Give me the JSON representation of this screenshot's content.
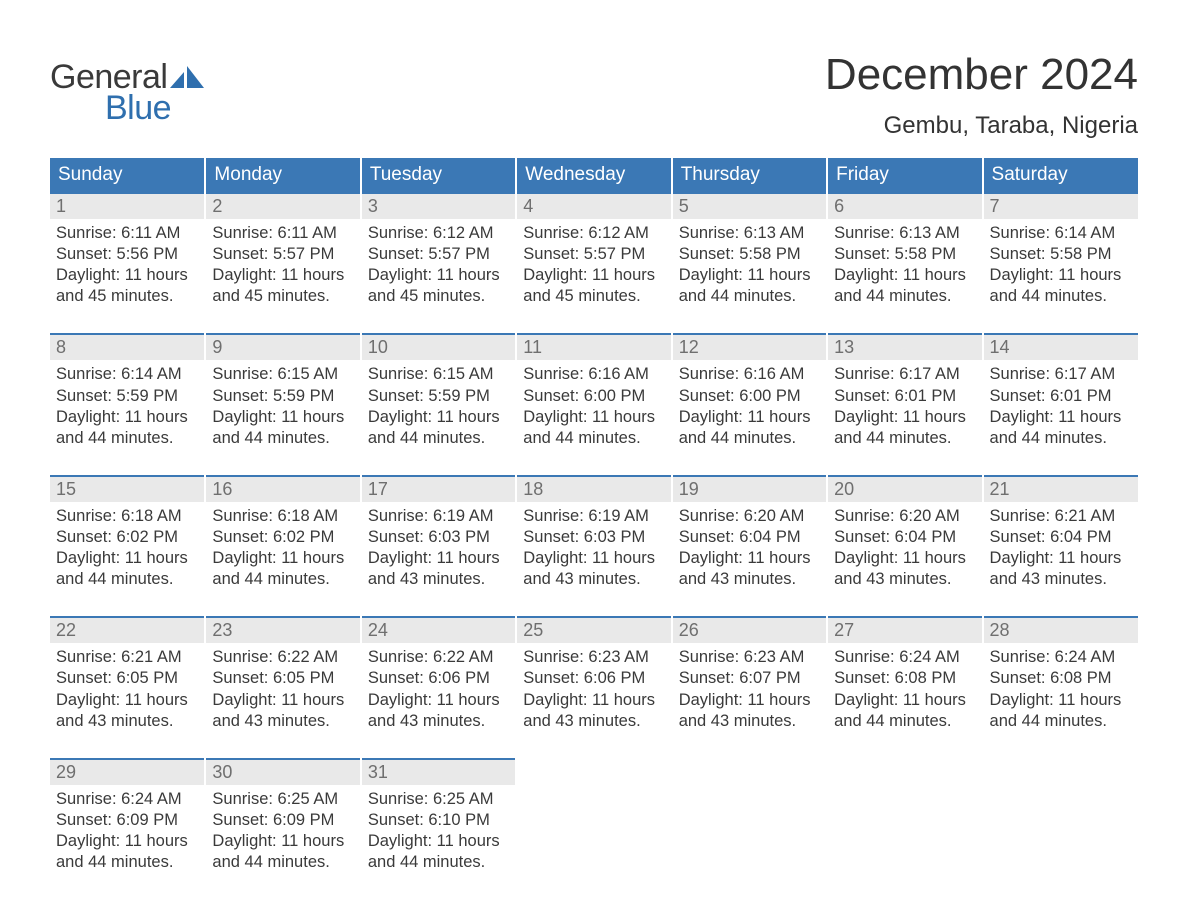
{
  "logo": {
    "text1": "General",
    "text2": "Blue",
    "accent_color": "#2f6fae"
  },
  "title": "December 2024",
  "location": "Gembu, Taraba, Nigeria",
  "header_bg": "#3b78b5",
  "daynum_bg": "#e9e9e9",
  "border_color": "#3b78b5",
  "day_headers": [
    "Sunday",
    "Monday",
    "Tuesday",
    "Wednesday",
    "Thursday",
    "Friday",
    "Saturday"
  ],
  "weeks": [
    [
      {
        "n": "1",
        "sr": "6:11 AM",
        "ss": "5:56 PM",
        "dl": "11 hours and 45 minutes."
      },
      {
        "n": "2",
        "sr": "6:11 AM",
        "ss": "5:57 PM",
        "dl": "11 hours and 45 minutes."
      },
      {
        "n": "3",
        "sr": "6:12 AM",
        "ss": "5:57 PM",
        "dl": "11 hours and 45 minutes."
      },
      {
        "n": "4",
        "sr": "6:12 AM",
        "ss": "5:57 PM",
        "dl": "11 hours and 45 minutes."
      },
      {
        "n": "5",
        "sr": "6:13 AM",
        "ss": "5:58 PM",
        "dl": "11 hours and 44 minutes."
      },
      {
        "n": "6",
        "sr": "6:13 AM",
        "ss": "5:58 PM",
        "dl": "11 hours and 44 minutes."
      },
      {
        "n": "7",
        "sr": "6:14 AM",
        "ss": "5:58 PM",
        "dl": "11 hours and 44 minutes."
      }
    ],
    [
      {
        "n": "8",
        "sr": "6:14 AM",
        "ss": "5:59 PM",
        "dl": "11 hours and 44 minutes."
      },
      {
        "n": "9",
        "sr": "6:15 AM",
        "ss": "5:59 PM",
        "dl": "11 hours and 44 minutes."
      },
      {
        "n": "10",
        "sr": "6:15 AM",
        "ss": "5:59 PM",
        "dl": "11 hours and 44 minutes."
      },
      {
        "n": "11",
        "sr": "6:16 AM",
        "ss": "6:00 PM",
        "dl": "11 hours and 44 minutes."
      },
      {
        "n": "12",
        "sr": "6:16 AM",
        "ss": "6:00 PM",
        "dl": "11 hours and 44 minutes."
      },
      {
        "n": "13",
        "sr": "6:17 AM",
        "ss": "6:01 PM",
        "dl": "11 hours and 44 minutes."
      },
      {
        "n": "14",
        "sr": "6:17 AM",
        "ss": "6:01 PM",
        "dl": "11 hours and 44 minutes."
      }
    ],
    [
      {
        "n": "15",
        "sr": "6:18 AM",
        "ss": "6:02 PM",
        "dl": "11 hours and 44 minutes."
      },
      {
        "n": "16",
        "sr": "6:18 AM",
        "ss": "6:02 PM",
        "dl": "11 hours and 44 minutes."
      },
      {
        "n": "17",
        "sr": "6:19 AM",
        "ss": "6:03 PM",
        "dl": "11 hours and 43 minutes."
      },
      {
        "n": "18",
        "sr": "6:19 AM",
        "ss": "6:03 PM",
        "dl": "11 hours and 43 minutes."
      },
      {
        "n": "19",
        "sr": "6:20 AM",
        "ss": "6:04 PM",
        "dl": "11 hours and 43 minutes."
      },
      {
        "n": "20",
        "sr": "6:20 AM",
        "ss": "6:04 PM",
        "dl": "11 hours and 43 minutes."
      },
      {
        "n": "21",
        "sr": "6:21 AM",
        "ss": "6:04 PM",
        "dl": "11 hours and 43 minutes."
      }
    ],
    [
      {
        "n": "22",
        "sr": "6:21 AM",
        "ss": "6:05 PM",
        "dl": "11 hours and 43 minutes."
      },
      {
        "n": "23",
        "sr": "6:22 AM",
        "ss": "6:05 PM",
        "dl": "11 hours and 43 minutes."
      },
      {
        "n": "24",
        "sr": "6:22 AM",
        "ss": "6:06 PM",
        "dl": "11 hours and 43 minutes."
      },
      {
        "n": "25",
        "sr": "6:23 AM",
        "ss": "6:06 PM",
        "dl": "11 hours and 43 minutes."
      },
      {
        "n": "26",
        "sr": "6:23 AM",
        "ss": "6:07 PM",
        "dl": "11 hours and 43 minutes."
      },
      {
        "n": "27",
        "sr": "6:24 AM",
        "ss": "6:08 PM",
        "dl": "11 hours and 44 minutes."
      },
      {
        "n": "28",
        "sr": "6:24 AM",
        "ss": "6:08 PM",
        "dl": "11 hours and 44 minutes."
      }
    ],
    [
      {
        "n": "29",
        "sr": "6:24 AM",
        "ss": "6:09 PM",
        "dl": "11 hours and 44 minutes."
      },
      {
        "n": "30",
        "sr": "6:25 AM",
        "ss": "6:09 PM",
        "dl": "11 hours and 44 minutes."
      },
      {
        "n": "31",
        "sr": "6:25 AM",
        "ss": "6:10 PM",
        "dl": "11 hours and 44 minutes."
      },
      null,
      null,
      null,
      null
    ]
  ],
  "labels": {
    "sunrise": "Sunrise:",
    "sunset": "Sunset:",
    "daylight": "Daylight:"
  }
}
